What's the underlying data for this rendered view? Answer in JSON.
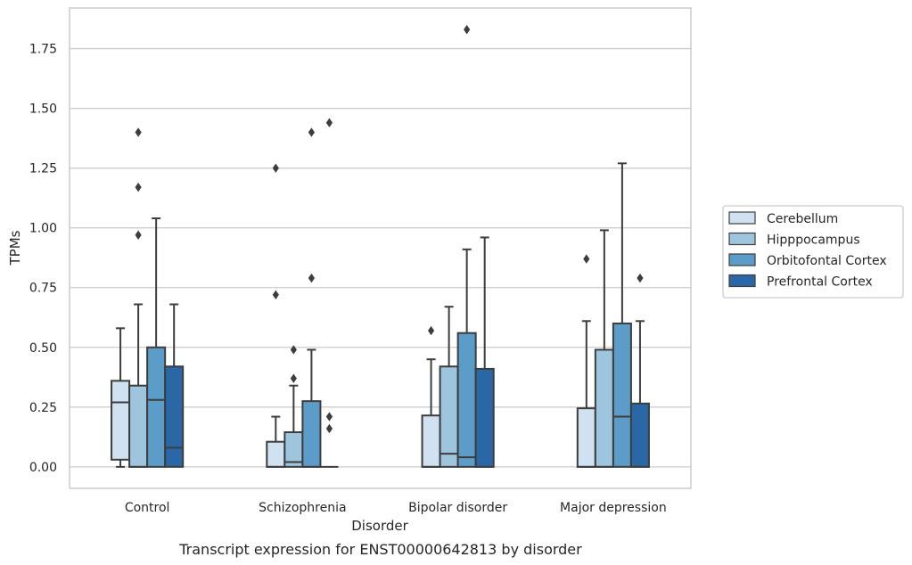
{
  "chart_data": {
    "type": "box",
    "xlabel": "Disorder",
    "ylabel": "TPMs",
    "caption": "Transcript expression for ENST00000642813 by disorder",
    "ylim": [
      -0.09,
      1.92
    ],
    "yticks": [
      "0.00",
      "0.25",
      "0.50",
      "0.75",
      "1.00",
      "1.25",
      "1.50",
      "1.75"
    ],
    "grid": "horizontal",
    "legend_placement": "right",
    "categories": [
      "Control",
      "Schizophrenia",
      "Bipolar disorder",
      "Major depression"
    ],
    "series": [
      {
        "name": "Cerebellum",
        "color": "#d0e1f1",
        "boxes": [
          {
            "lower_whisker": 0.0,
            "q1": 0.03,
            "median": 0.27,
            "q3": 0.36,
            "upper_whisker": 0.58,
            "outliers": []
          },
          {
            "lower_whisker": 0.0,
            "q1": 0.0,
            "median": 0.0,
            "q3": 0.105,
            "upper_whisker": 0.21,
            "outliers": [
              0.72,
              1.25
            ]
          },
          {
            "lower_whisker": 0.0,
            "q1": 0.0,
            "median": 0.0,
            "q3": 0.215,
            "upper_whisker": 0.45,
            "outliers": [
              0.57
            ]
          },
          {
            "lower_whisker": 0.0,
            "q1": 0.0,
            "median": 0.0,
            "q3": 0.245,
            "upper_whisker": 0.61,
            "outliers": [
              0.87
            ]
          }
        ]
      },
      {
        "name": "Hipppocampus",
        "color": "#9dc5de",
        "boxes": [
          {
            "lower_whisker": 0.0,
            "q1": 0.0,
            "median": 0.0,
            "q3": 0.34,
            "upper_whisker": 0.68,
            "outliers": [
              0.97,
              1.17,
              1.4
            ]
          },
          {
            "lower_whisker": 0.0,
            "q1": 0.0,
            "median": 0.02,
            "q3": 0.145,
            "upper_whisker": 0.34,
            "outliers": [
              0.37,
              0.49
            ]
          },
          {
            "lower_whisker": 0.0,
            "q1": 0.0,
            "median": 0.055,
            "q3": 0.42,
            "upper_whisker": 0.67,
            "outliers": []
          },
          {
            "lower_whisker": 0.0,
            "q1": 0.0,
            "median": 0.0,
            "q3": 0.49,
            "upper_whisker": 0.99,
            "outliers": []
          }
        ]
      },
      {
        "name": "Orbitofontal Cortex",
        "color": "#5b9cc8",
        "boxes": [
          {
            "lower_whisker": 0.0,
            "q1": 0.0,
            "median": 0.28,
            "q3": 0.5,
            "upper_whisker": 1.04,
            "outliers": []
          },
          {
            "lower_whisker": 0.0,
            "q1": 0.0,
            "median": 0.0,
            "q3": 0.275,
            "upper_whisker": 0.49,
            "outliers": [
              0.79,
              1.4
            ]
          },
          {
            "lower_whisker": 0.0,
            "q1": 0.0,
            "median": 0.04,
            "q3": 0.56,
            "upper_whisker": 0.91,
            "outliers": [
              1.83
            ]
          },
          {
            "lower_whisker": 0.0,
            "q1": 0.0,
            "median": 0.21,
            "q3": 0.6,
            "upper_whisker": 1.27,
            "outliers": []
          }
        ]
      },
      {
        "name": "Prefrontal Cortex",
        "color": "#2a67a6",
        "boxes": [
          {
            "lower_whisker": 0.0,
            "q1": 0.0,
            "median": 0.08,
            "q3": 0.42,
            "upper_whisker": 0.68,
            "outliers": []
          },
          {
            "lower_whisker": 0.0,
            "q1": 0.0,
            "median": 0.0,
            "q3": 0.0,
            "upper_whisker": 0.0,
            "outliers": [
              0.16,
              0.21,
              1.44
            ]
          },
          {
            "lower_whisker": 0.0,
            "q1": 0.0,
            "median": 0.0,
            "q3": 0.41,
            "upper_whisker": 0.96,
            "outliers": []
          },
          {
            "lower_whisker": 0.0,
            "q1": 0.0,
            "median": 0.0,
            "q3": 0.265,
            "upper_whisker": 0.61,
            "outliers": [
              0.79
            ]
          }
        ]
      }
    ]
  }
}
